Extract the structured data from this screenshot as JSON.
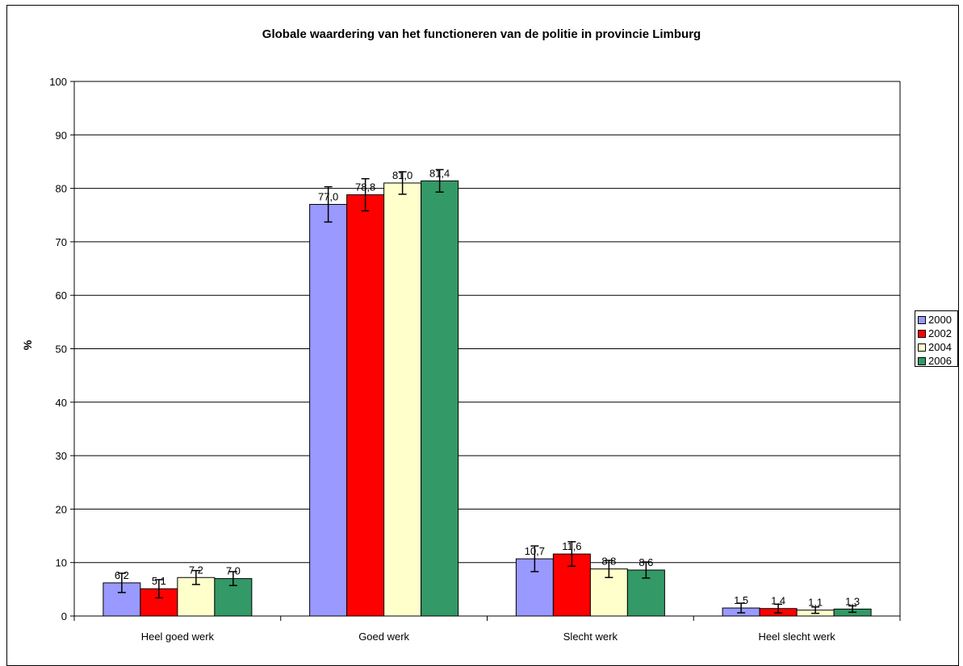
{
  "chart_data": {
    "type": "bar",
    "title": "Globale waardering van het functioneren van de politie in provincie Limburg",
    "xlabel": "",
    "ylabel": "%",
    "ylim": [
      0,
      100
    ],
    "yticks": [
      "0",
      "10",
      "20",
      "30",
      "40",
      "50",
      "60",
      "70",
      "80",
      "90",
      "100"
    ],
    "grid": true,
    "legend_position": "right",
    "categories": [
      "Heel goed werk",
      "Goed werk",
      "Slecht werk",
      "Heel slecht werk"
    ],
    "series": [
      {
        "name": "2000",
        "color": "#9999ff",
        "values": [
          6.2,
          77.0,
          10.7,
          1.5
        ],
        "labels": [
          "6,2",
          "77,0",
          "10,7",
          "1,5"
        ],
        "err": [
          1.8,
          3.3,
          2.4,
          0.9
        ]
      },
      {
        "name": "2002",
        "color": "#ff0000",
        "values": [
          5.1,
          78.8,
          11.6,
          1.4
        ],
        "labels": [
          "5,1",
          "78,8",
          "11,6",
          "1,4"
        ],
        "err": [
          1.7,
          3.0,
          2.3,
          0.8
        ]
      },
      {
        "name": "2004",
        "color": "#ffffcc",
        "values": [
          7.2,
          81.0,
          8.8,
          1.1
        ],
        "labels": [
          "7,2",
          "81,0",
          "8,8",
          "1,1"
        ],
        "err": [
          1.3,
          2.1,
          1.6,
          0.6
        ]
      },
      {
        "name": "2006",
        "color": "#339966",
        "values": [
          7.0,
          81.4,
          8.6,
          1.3
        ],
        "labels": [
          "7,0",
          "81,4",
          "8,6",
          "1,3"
        ],
        "err": [
          1.3,
          2.1,
          1.5,
          0.6
        ]
      }
    ]
  }
}
